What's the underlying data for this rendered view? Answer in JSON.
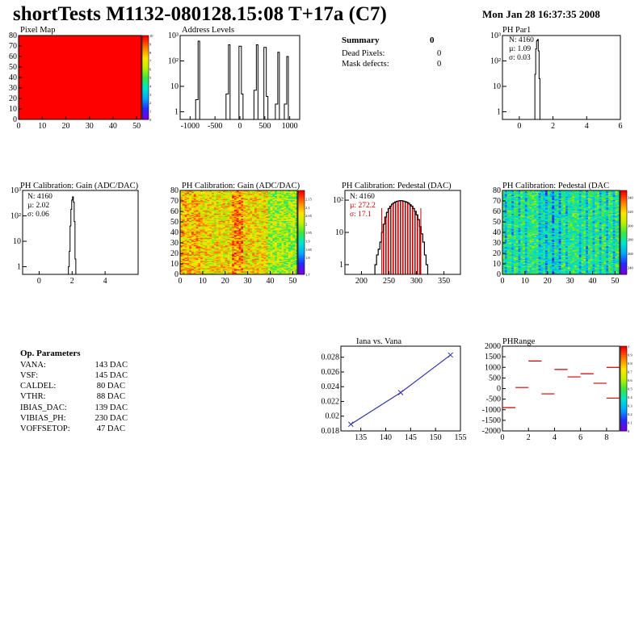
{
  "header": {
    "title": "shortTests M1132-080128.15:08 T+17a (C7)",
    "date": "Mon Jan 28 16:37:35 2008"
  },
  "summary": {
    "title": "Summary",
    "title_value": "0",
    "rows": [
      {
        "label": "Dead Pixels:",
        "value": "0"
      },
      {
        "label": "Mask defects:",
        "value": "0"
      }
    ]
  },
  "op_params": {
    "title": "Op. Parameters",
    "rows": [
      {
        "label": "VANA:",
        "value": "143 DAC"
      },
      {
        "label": "VSF:",
        "value": "145 DAC"
      },
      {
        "label": "CALDEL:",
        "value": "80 DAC"
      },
      {
        "label": "VTHR:",
        "value": "88 DAC"
      },
      {
        "label": "IBIAS_DAC:",
        "value": "139 DAC"
      },
      {
        "label": "VIBIAS_PH:",
        "value": "230 DAC"
      },
      {
        "label": "VOFFSETOP:",
        "value": "47 DAC"
      }
    ]
  },
  "colors": {
    "frame": "#000000",
    "histogram": "#000000",
    "pedestal_fill": "#cc0000",
    "pedestal_text": "#cc0000",
    "fit_line": "#3333aa",
    "phrange_marks": "#cc0000",
    "pixelmap_fill": "#ff0000"
  },
  "chart_data": [
    {
      "id": "pixel-map",
      "type": "heatmap",
      "title": "Pixel Map",
      "x_ticks": [
        "0",
        "10",
        "20",
        "30",
        "40",
        "50"
      ],
      "y_ticks": [
        "0",
        "10",
        "20",
        "30",
        "40",
        "50",
        "60",
        "70",
        "80"
      ],
      "xlim": [
        0,
        52
      ],
      "ylim": [
        0,
        80
      ],
      "uniform_value": 10,
      "palette_ticks": [
        "0",
        "1",
        "2",
        "3",
        "4",
        "5",
        "6",
        "7",
        "8",
        "9",
        "10"
      ],
      "zlim": [
        0,
        10
      ]
    },
    {
      "id": "address-levels",
      "type": "bar",
      "title": "Address Levels",
      "log_y": true,
      "xlim": [
        -1200,
        1200
      ],
      "ylim": [
        0.5,
        1000
      ],
      "x_ticks": [
        "-1000",
        "-500",
        "0",
        "500",
        "1000"
      ],
      "x_tick_values": [
        -1000,
        -500,
        0,
        500,
        1000
      ],
      "y_ticks": [
        "1",
        "10",
        "10²",
        "10³"
      ],
      "peaks": [
        {
          "x": -840,
          "values": [
            3,
            600
          ]
        },
        {
          "x": -230,
          "values": [
            5,
            430
          ]
        },
        {
          "x": 30,
          "values": [
            380,
            5
          ]
        },
        {
          "x": 330,
          "values": [
            7,
            430
          ]
        },
        {
          "x": 530,
          "values": [
            340,
            4
          ]
        },
        {
          "x": 760,
          "values": [
            2,
            220
          ]
        },
        {
          "x": 940,
          "values": [
            2,
            150
          ]
        }
      ]
    },
    {
      "id": "ph-par1",
      "type": "bar",
      "title": "PH Par1",
      "log_y": true,
      "xlim": [
        -1,
        6
      ],
      "ylim": [
        0.5,
        1000
      ],
      "x_ticks": [
        "0",
        "2",
        "4",
        "6"
      ],
      "x_tick_values": [
        0,
        2,
        4,
        6
      ],
      "y_ticks": [
        "1",
        "10",
        "10²",
        "10³"
      ],
      "stats": {
        "n": "N: 4160",
        "mean": "µ: 1.09",
        "rms": "σ: 0.03"
      },
      "bins_x": [
        0.95,
        1.0,
        1.05,
        1.1,
        1.15,
        1.2
      ],
      "bins_y": [
        30,
        300,
        620,
        700,
        250,
        20
      ]
    },
    {
      "id": "ph-gain-1d",
      "type": "bar",
      "title": "PH Calibration: Gain (ADC/DAC)",
      "log_y": true,
      "xlim": [
        -1,
        6
      ],
      "ylim": [
        0.5,
        1000
      ],
      "x_ticks": [
        "0",
        "2",
        "4"
      ],
      "x_tick_values": [
        0,
        2,
        4
      ],
      "y_ticks": [
        "1",
        "10",
        "10²",
        "10³"
      ],
      "stats": {
        "n": "N: 4160",
        "mean": "µ: 2.02",
        "rms": "σ: 0.06"
      },
      "bins_x": [
        1.8,
        1.85,
        1.9,
        1.95,
        2.0,
        2.05,
        2.1,
        2.15,
        2.2
      ],
      "bins_y": [
        1,
        4,
        40,
        180,
        420,
        560,
        350,
        60,
        2
      ]
    },
    {
      "id": "ph-gain-map",
      "type": "heatmap",
      "title": "PH Calibration: Gain (ADC/DAC)",
      "x_ticks": [
        "0",
        "10",
        "20",
        "30",
        "40",
        "50"
      ],
      "y_ticks": [
        "0",
        "10",
        "20",
        "30",
        "40",
        "50",
        "60",
        "70",
        "80"
      ],
      "xlim": [
        0,
        52
      ],
      "ylim": [
        0,
        80
      ],
      "palette_ticks": [
        "1.7",
        "1.8",
        "1.85",
        "1.9",
        "1.95",
        "2",
        "2.05",
        "2.1",
        "2.15"
      ],
      "zlim": [
        1.7,
        2.2
      ]
    },
    {
      "id": "ph-pedestal-1d",
      "type": "bar",
      "title": "PH Calibration: Pedestal (DAC)",
      "log_y": true,
      "xlim": [
        170,
        380
      ],
      "ylim": [
        0.5,
        200
      ],
      "x_ticks": [
        "200",
        "250",
        "300",
        "350"
      ],
      "x_tick_values": [
        200,
        250,
        300,
        350
      ],
      "y_ticks": [
        "1",
        "10",
        "10²"
      ],
      "stats": {
        "n": "N: 4160",
        "mean": "µ: 272.2",
        "rms": "σ: 17.1"
      },
      "cut_lines": [
        237,
        308
      ],
      "bins_x": [
        226,
        229,
        232,
        235,
        238,
        241,
        244,
        247,
        250,
        253,
        256,
        259,
        262,
        265,
        268,
        271,
        274,
        277,
        280,
        283,
        286,
        289,
        292,
        295,
        298,
        301,
        304,
        307,
        310,
        313,
        316,
        319
      ],
      "bins_y": [
        1,
        2,
        3,
        5,
        10,
        18,
        30,
        42,
        55,
        65,
        75,
        82,
        88,
        92,
        95,
        97,
        96,
        93,
        90,
        86,
        80,
        72,
        65,
        55,
        45,
        35,
        25,
        15,
        9,
        5,
        2,
        1
      ]
    },
    {
      "id": "ph-pedestal-map",
      "type": "heatmap",
      "title": "PH Calibration: Pedestal (DAC",
      "x_ticks": [
        "0",
        "10",
        "20",
        "30",
        "40",
        "50"
      ],
      "y_ticks": [
        "0",
        "10",
        "20",
        "30",
        "40",
        "50",
        "60",
        "70",
        "80"
      ],
      "xlim": [
        0,
        52
      ],
      "ylim": [
        0,
        80
      ],
      "palette_ticks": [
        "240",
        "260",
        "280",
        "300",
        "320",
        "340"
      ],
      "zlim": [
        230,
        350
      ]
    },
    {
      "id": "iana-vana",
      "type": "line",
      "title": "Iana vs. Vana",
      "xlim": [
        131,
        155
      ],
      "ylim": [
        0.018,
        0.0295
      ],
      "x_ticks": [
        "135",
        "140",
        "145",
        "150",
        "155"
      ],
      "x_tick_values": [
        135,
        140,
        145,
        150,
        155
      ],
      "y_ticks": [
        "0.018",
        "0.02",
        "0.022",
        "0.024",
        "0.026",
        "0.028"
      ],
      "y_tick_values": [
        0.018,
        0.02,
        0.022,
        0.024,
        0.026,
        0.028
      ],
      "x": [
        133,
        143,
        153
      ],
      "y": [
        0.0189,
        0.0232,
        0.0283
      ]
    },
    {
      "id": "ph-range",
      "type": "scatter",
      "title": "PHRange",
      "xlim": [
        0,
        9
      ],
      "ylim": [
        -2000,
        2000
      ],
      "x_ticks": [
        "0",
        "2",
        "4",
        "6",
        "8"
      ],
      "x_tick_values": [
        0,
        2,
        4,
        6,
        8
      ],
      "y_ticks": [
        "2000",
        "1500",
        "1000",
        "500",
        "0",
        "-500",
        "-1000",
        "-1500",
        "-2000"
      ],
      "y_tick_values": [
        2000,
        1500,
        1000,
        500,
        0,
        -500,
        -1000,
        -1500,
        -2000
      ],
      "x": [
        0.5,
        1.5,
        2.5,
        3.5,
        4.5,
        5.5,
        6.5,
        7.5,
        8.5
      ],
      "y": [
        -900,
        50,
        1300,
        -250,
        900,
        550,
        700,
        250,
        1000
      ],
      "extra_y": [
        null,
        null,
        null,
        null,
        null,
        null,
        null,
        null,
        -450
      ],
      "palette_ticks": [
        "0",
        "0.1",
        "0.2",
        "0.3",
        "0.4",
        "0.5",
        "0.6",
        "0.7",
        "0.8",
        "0.9",
        "1"
      ],
      "zlim": [
        0,
        1
      ]
    }
  ]
}
